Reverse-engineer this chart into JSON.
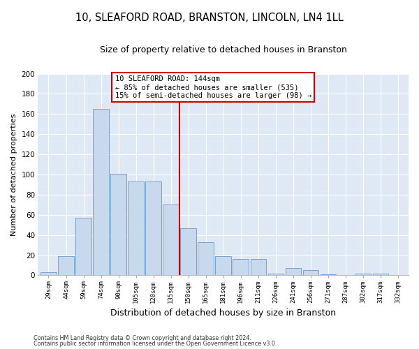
{
  "title1": "10, SLEAFORD ROAD, BRANSTON, LINCOLN, LN4 1LL",
  "title2": "Size of property relative to detached houses in Branston",
  "xlabel": "Distribution of detached houses by size in Branston",
  "ylabel": "Number of detached properties",
  "categories": [
    "29sqm",
    "44sqm",
    "59sqm",
    "74sqm",
    "90sqm",
    "105sqm",
    "120sqm",
    "135sqm",
    "150sqm",
    "165sqm",
    "181sqm",
    "196sqm",
    "211sqm",
    "226sqm",
    "241sqm",
    "256sqm",
    "271sqm",
    "287sqm",
    "302sqm",
    "317sqm",
    "332sqm"
  ],
  "values": [
    3,
    19,
    57,
    165,
    101,
    93,
    93,
    70,
    47,
    33,
    19,
    16,
    16,
    2,
    7,
    5,
    1,
    0,
    2,
    2,
    0
  ],
  "bar_color": "#c8d9ee",
  "bar_edge_color": "#6699cc",
  "vline_color": "#cc0000",
  "annotation_line1": "10 SLEAFORD ROAD: 144sqm",
  "annotation_line2": "← 85% of detached houses are smaller (535)",
  "annotation_line3": "15% of semi-detached houses are larger (98) →",
  "annotation_box_color": "#cc0000",
  "ylim": [
    0,
    200
  ],
  "yticks": [
    0,
    20,
    40,
    60,
    80,
    100,
    120,
    140,
    160,
    180,
    200
  ],
  "background_color": "#dfe8f5",
  "grid_color": "#ffffff",
  "footer1": "Contains HM Land Registry data © Crown copyright and database right 2024.",
  "footer2": "Contains public sector information licensed under the Open Government Licence v3.0.",
  "title1_fontsize": 10.5,
  "title2_fontsize": 9,
  "xlabel_fontsize": 9,
  "ylabel_fontsize": 8,
  "annotation_fontsize": 7.5,
  "vline_x_index": 7.5
}
